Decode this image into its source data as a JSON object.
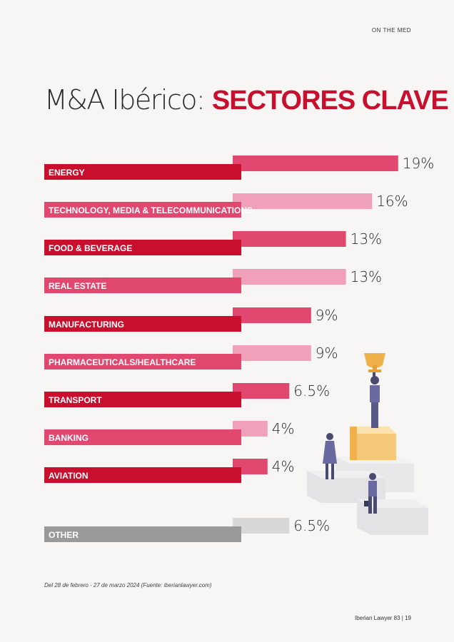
{
  "header": {
    "section_tag": "ON THE MED"
  },
  "title": {
    "light": "M&A Ibérico:",
    "bold": "SECTORES CLAVE"
  },
  "chart_data": {
    "type": "bar",
    "orientation": "horizontal",
    "categories": [
      "ENERGY",
      "TECHNOLOGY, MEDIA & TELECOMMUNICATIONS",
      "FOOD & BEVERAGE",
      "REAL ESTATE",
      "MANUFACTURING",
      "PHARMACEUTICALS/HEALTHCARE",
      "TRANSPORT",
      "BANKING",
      "AVIATION",
      "OTHER"
    ],
    "values": [
      19,
      16,
      13,
      13,
      9,
      9,
      6.5,
      4,
      4,
      6.5
    ],
    "value_labels": [
      "19%",
      "16%",
      "13%",
      "13%",
      "9%",
      "9%",
      "6.5%",
      "4%",
      "4%",
      "6.5%"
    ],
    "unit": "%",
    "colors": {
      "dark_red": "#c8102e",
      "pink": "#e04870",
      "light_pink": "#f0a0b8",
      "gray": "#9a9a9a",
      "light_gray": "#d8d8d8"
    }
  },
  "footnote": "Del 28 de febrero - 27 de marzo 2024 (Fuente: iberianlawyer.com)",
  "footer": {
    "text": "Iberian Lawyer 83 | 19"
  }
}
